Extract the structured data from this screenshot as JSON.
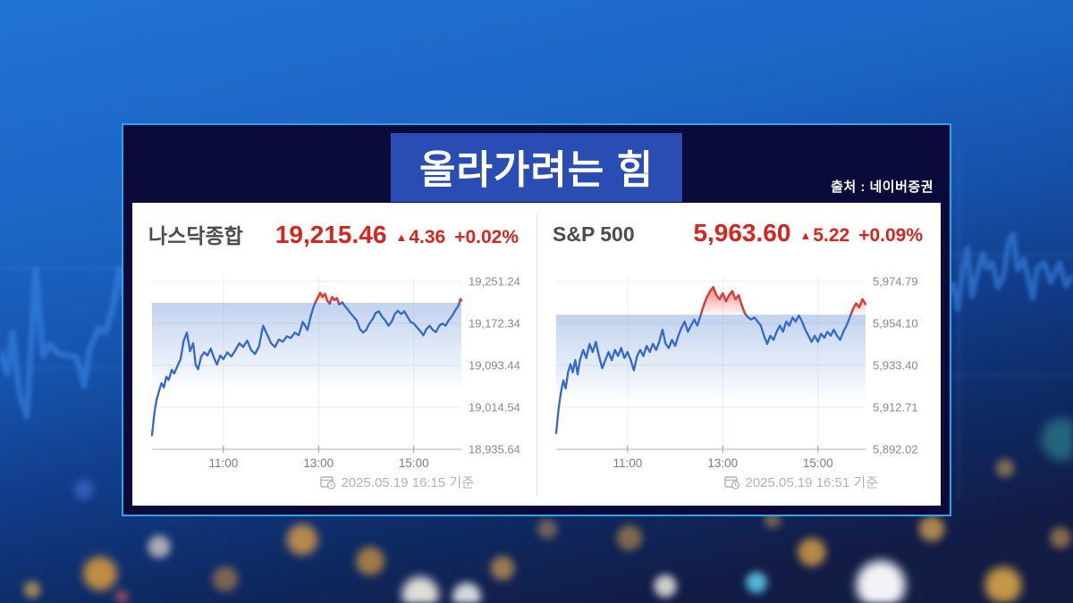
{
  "header": {
    "title": "올라가려는 힘",
    "source": "출처 : 네이버증권"
  },
  "colors": {
    "panel_border": "#2ca6e6",
    "panel_bg": "#0a0b3a",
    "title_box_bg": "#2a4db3",
    "up_red": "#d6251e",
    "line_blue": "#3468cf",
    "line_red": "#e8382d",
    "band_blue": "#6d95d8",
    "grid_gray": "#e8e8e8",
    "axis_gray": "#c4c4c4",
    "label_gray": "#8a8a8a",
    "timestamp_gray": "#b2b2b2"
  },
  "icons": {
    "timestamp_icon": "calendar-clock",
    "up_arrow": "▲"
  },
  "chart_data": [
    {
      "type": "line",
      "name": "나스닥종합",
      "price": "19,215.46",
      "arrow": "▲",
      "change": "4.36",
      "change_pct": "+0.02%",
      "timestamp": "2025.05.19 16:15 기준",
      "prev_close": 19211.1,
      "ylim": [
        18935.64,
        19251.24
      ],
      "y_axis": {
        "labels": [
          "19,251.24",
          "19,172.34",
          "19,093.44",
          "19,014.54",
          "18,935.64"
        ],
        "values": [
          19251.24,
          19172.34,
          19093.44,
          19014.54,
          18935.64
        ]
      },
      "x_axis": {
        "range": [
          0,
          390
        ],
        "ticks": [
          {
            "t": 90,
            "label": "11:00"
          },
          {
            "t": 210,
            "label": "13:00"
          },
          {
            "t": 330,
            "label": "15:00"
          }
        ]
      },
      "points": [
        [
          0,
          18962
        ],
        [
          3,
          19005
        ],
        [
          6,
          19030
        ],
        [
          9,
          19046
        ],
        [
          12,
          19060
        ],
        [
          15,
          19052
        ],
        [
          18,
          19072
        ],
        [
          21,
          19066
        ],
        [
          25,
          19085
        ],
        [
          28,
          19078
        ],
        [
          32,
          19092
        ],
        [
          36,
          19105
        ],
        [
          40,
          19140
        ],
        [
          44,
          19155
        ],
        [
          48,
          19120
        ],
        [
          52,
          19135
        ],
        [
          55,
          19095
        ],
        [
          58,
          19086
        ],
        [
          62,
          19110
        ],
        [
          66,
          19118
        ],
        [
          70,
          19112
        ],
        [
          74,
          19125
        ],
        [
          78,
          19108
        ],
        [
          82,
          19095
        ],
        [
          86,
          19112
        ],
        [
          90,
          19105
        ],
        [
          95,
          19118
        ],
        [
          100,
          19110
        ],
        [
          105,
          19122
        ],
        [
          110,
          19135
        ],
        [
          115,
          19128
        ],
        [
          120,
          19140
        ],
        [
          125,
          19122
        ],
        [
          130,
          19115
        ],
        [
          135,
          19130
        ],
        [
          140,
          19168
        ],
        [
          145,
          19152
        ],
        [
          150,
          19135
        ],
        [
          155,
          19128
        ],
        [
          160,
          19142
        ],
        [
          165,
          19138
        ],
        [
          170,
          19148
        ],
        [
          175,
          19145
        ],
        [
          180,
          19155
        ],
        [
          185,
          19150
        ],
        [
          190,
          19175
        ],
        [
          193,
          19168
        ],
        [
          196,
          19160
        ],
        [
          200,
          19185
        ],
        [
          204,
          19205
        ],
        [
          208,
          19218
        ],
        [
          212,
          19230
        ],
        [
          215,
          19222
        ],
        [
          218,
          19228
        ],
        [
          221,
          19215
        ],
        [
          224,
          19209
        ],
        [
          227,
          19222
        ],
        [
          230,
          19216
        ],
        [
          233,
          19220
        ],
        [
          236,
          19208
        ],
        [
          240,
          19212
        ],
        [
          243,
          19205
        ],
        [
          246,
          19200
        ],
        [
          250,
          19192
        ],
        [
          254,
          19185
        ],
        [
          258,
          19178
        ],
        [
          262,
          19162
        ],
        [
          266,
          19155
        ],
        [
          270,
          19160
        ],
        [
          274,
          19172
        ],
        [
          278,
          19180
        ],
        [
          282,
          19192
        ],
        [
          286,
          19195
        ],
        [
          290,
          19185
        ],
        [
          294,
          19178
        ],
        [
          298,
          19168
        ],
        [
          302,
          19175
        ],
        [
          306,
          19190
        ],
        [
          310,
          19196
        ],
        [
          314,
          19190
        ],
        [
          318,
          19195
        ],
        [
          322,
          19185
        ],
        [
          326,
          19175
        ],
        [
          330,
          19172
        ],
        [
          334,
          19165
        ],
        [
          338,
          19158
        ],
        [
          342,
          19150
        ],
        [
          346,
          19162
        ],
        [
          350,
          19168
        ],
        [
          354,
          19160
        ],
        [
          358,
          19156
        ],
        [
          362,
          19168
        ],
        [
          366,
          19172
        ],
        [
          370,
          19168
        ],
        [
          374,
          19178
        ],
        [
          378,
          19186
        ],
        [
          382,
          19196
        ],
        [
          386,
          19205
        ],
        [
          389,
          19218
        ],
        [
          390,
          19215.46
        ]
      ]
    },
    {
      "type": "line",
      "name": "S&P 500",
      "price": "5,963.60",
      "arrow": "▲",
      "change": "5.22",
      "change_pct": "+0.09%",
      "timestamp": "2025.05.19 16:51 기준",
      "prev_close": 5958.38,
      "ylim": [
        5892.02,
        5974.79
      ],
      "y_axis": {
        "labels": [
          "5,974.79",
          "5,954.10",
          "5,933.40",
          "5,912.71",
          "5,892.02"
        ],
        "values": [
          5974.79,
          5954.1,
          5933.4,
          5912.71,
          5892.02
        ]
      },
      "x_axis": {
        "range": [
          0,
          390
        ],
        "ticks": [
          {
            "t": 90,
            "label": "11:00"
          },
          {
            "t": 210,
            "label": "13:00"
          },
          {
            "t": 330,
            "label": "15:00"
          }
        ]
      },
      "points": [
        [
          0,
          5900
        ],
        [
          3,
          5912
        ],
        [
          6,
          5920
        ],
        [
          9,
          5926
        ],
        [
          12,
          5922
        ],
        [
          15,
          5930
        ],
        [
          18,
          5934
        ],
        [
          21,
          5930
        ],
        [
          24,
          5936
        ],
        [
          27,
          5929
        ],
        [
          30,
          5936
        ],
        [
          34,
          5941
        ],
        [
          38,
          5937
        ],
        [
          42,
          5944
        ],
        [
          46,
          5940
        ],
        [
          50,
          5945
        ],
        [
          54,
          5938
        ],
        [
          58,
          5932
        ],
        [
          62,
          5936
        ],
        [
          66,
          5940
        ],
        [
          70,
          5936
        ],
        [
          74,
          5941
        ],
        [
          78,
          5938
        ],
        [
          82,
          5942
        ],
        [
          86,
          5937
        ],
        [
          90,
          5940
        ],
        [
          94,
          5936
        ],
        [
          98,
          5931
        ],
        [
          102,
          5938
        ],
        [
          106,
          5941
        ],
        [
          110,
          5938
        ],
        [
          114,
          5943
        ],
        [
          118,
          5940
        ],
        [
          122,
          5944
        ],
        [
          126,
          5941
        ],
        [
          130,
          5945
        ],
        [
          134,
          5951
        ],
        [
          138,
          5944
        ],
        [
          142,
          5942
        ],
        [
          146,
          5946
        ],
        [
          150,
          5943
        ],
        [
          154,
          5948
        ],
        [
          158,
          5952
        ],
        [
          162,
          5955
        ],
        [
          166,
          5950
        ],
        [
          170,
          5953
        ],
        [
          174,
          5956
        ],
        [
          178,
          5953
        ],
        [
          182,
          5958
        ],
        [
          186,
          5963
        ],
        [
          190,
          5967
        ],
        [
          194,
          5970
        ],
        [
          198,
          5972
        ],
        [
          202,
          5968
        ],
        [
          206,
          5966
        ],
        [
          210,
          5969
        ],
        [
          214,
          5965
        ],
        [
          218,
          5968
        ],
        [
          222,
          5970
        ],
        [
          226,
          5966
        ],
        [
          230,
          5968
        ],
        [
          234,
          5963
        ],
        [
          238,
          5959
        ],
        [
          242,
          5957
        ],
        [
          246,
          5956
        ],
        [
          250,
          5957
        ],
        [
          254,
          5955
        ],
        [
          258,
          5953
        ],
        [
          262,
          5948
        ],
        [
          266,
          5944
        ],
        [
          270,
          5948
        ],
        [
          274,
          5946
        ],
        [
          278,
          5950
        ],
        [
          282,
          5953
        ],
        [
          286,
          5950
        ],
        [
          290,
          5955
        ],
        [
          294,
          5953
        ],
        [
          298,
          5957
        ],
        [
          302,
          5955
        ],
        [
          306,
          5958
        ],
        [
          310,
          5955
        ],
        [
          314,
          5951
        ],
        [
          318,
          5948
        ],
        [
          322,
          5945
        ],
        [
          326,
          5948
        ],
        [
          330,
          5945
        ],
        [
          334,
          5949
        ],
        [
          338,
          5947
        ],
        [
          342,
          5950
        ],
        [
          346,
          5948
        ],
        [
          350,
          5951
        ],
        [
          354,
          5948
        ],
        [
          358,
          5946
        ],
        [
          362,
          5950
        ],
        [
          366,
          5953
        ],
        [
          370,
          5957
        ],
        [
          374,
          5961
        ],
        [
          378,
          5964
        ],
        [
          382,
          5962
        ],
        [
          386,
          5966
        ],
        [
          390,
          5963.6
        ]
      ]
    }
  ]
}
